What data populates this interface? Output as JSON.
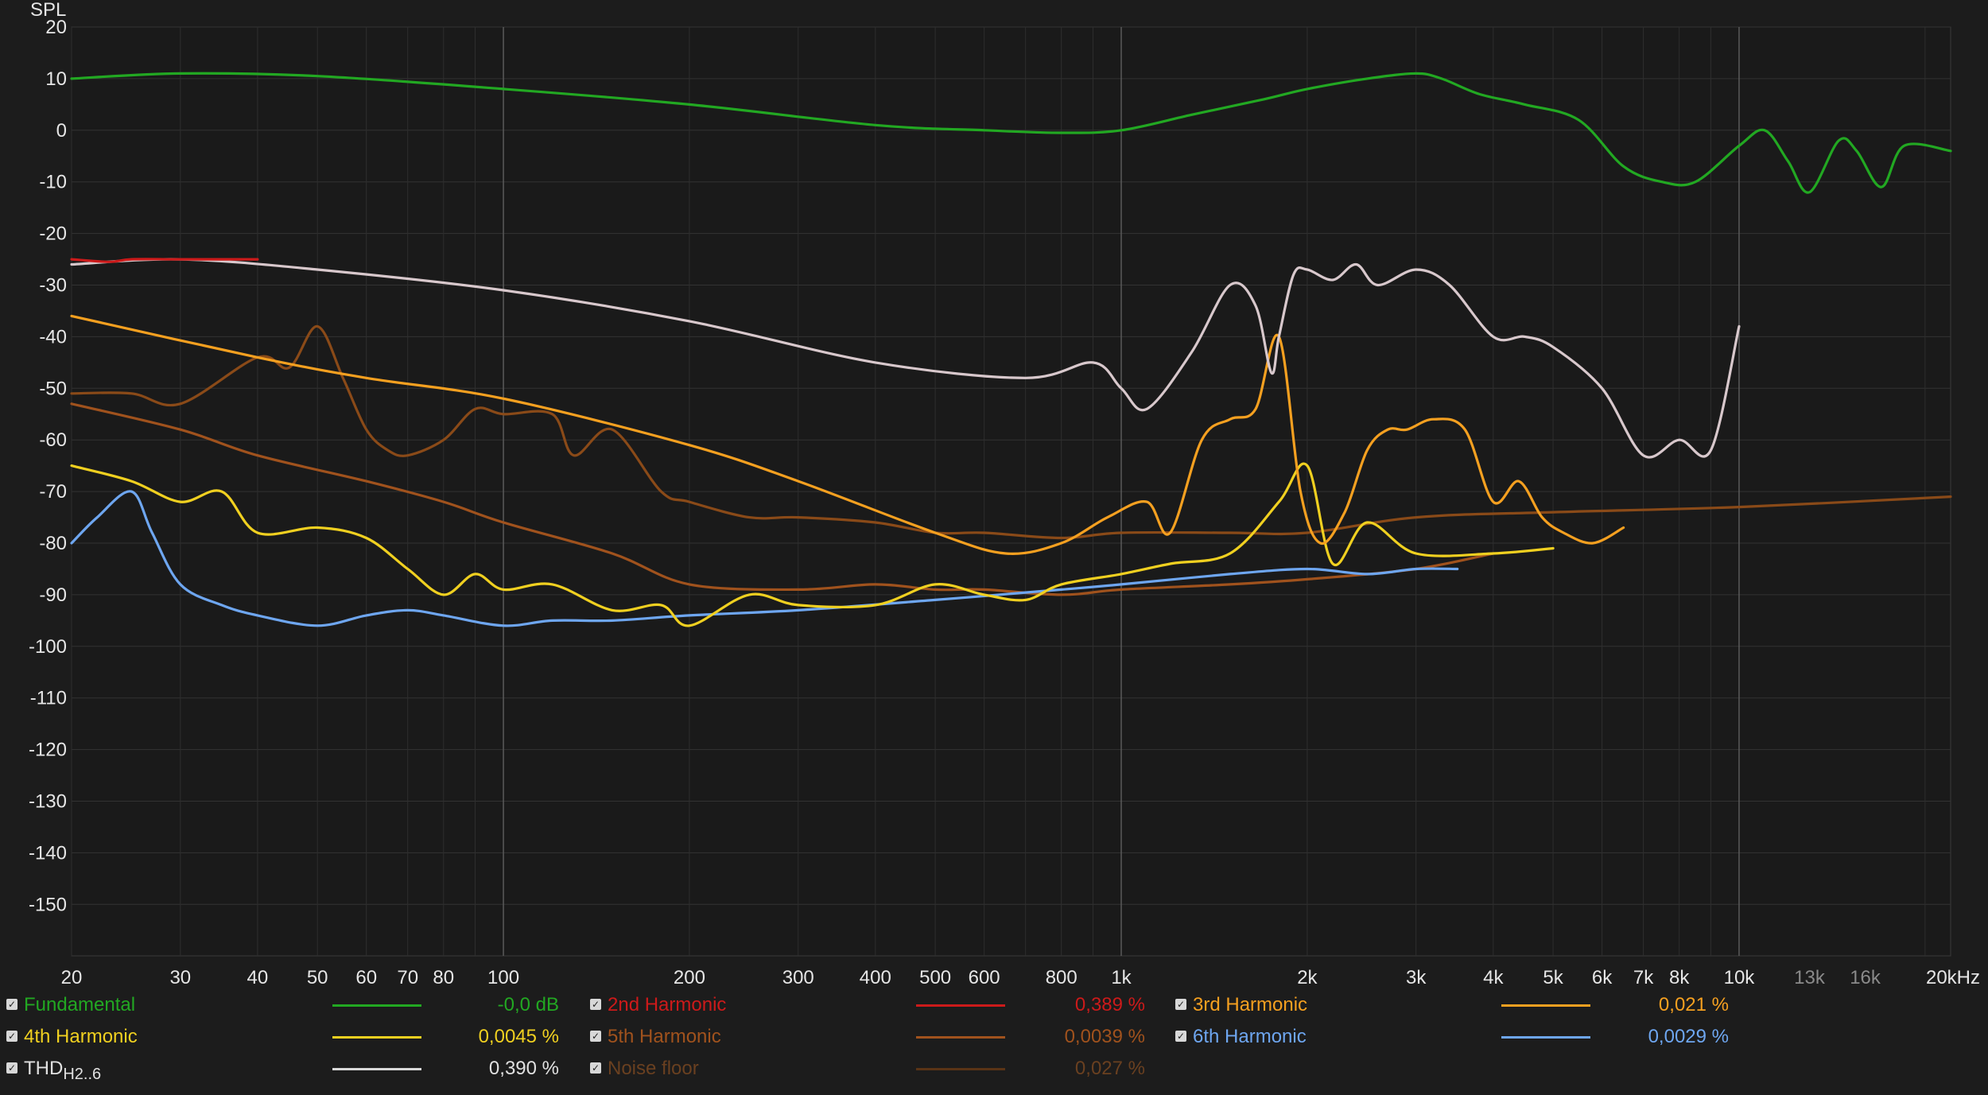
{
  "chart_data": {
    "type": "line",
    "ylabel": "SPL",
    "xscale": "log",
    "xlim": [
      20,
      22000
    ],
    "ylim": [
      -160,
      20
    ],
    "grid": true,
    "y_ticks": [
      "20",
      "10",
      "0",
      "-10",
      "-20",
      "-30",
      "-40",
      "-50",
      "-60",
      "-70",
      "-80",
      "-90",
      "-100",
      "-110",
      "-120",
      "-130",
      "-140",
      "-150"
    ],
    "x_ticks": [
      {
        "v": 20,
        "label": "20"
      },
      {
        "v": 30,
        "label": "30"
      },
      {
        "v": 40,
        "label": "40"
      },
      {
        "v": 50,
        "label": "50"
      },
      {
        "v": 60,
        "label": "60"
      },
      {
        "v": 70,
        "label": "70"
      },
      {
        "v": 80,
        "label": "80"
      },
      {
        "v": 100,
        "label": "100"
      },
      {
        "v": 200,
        "label": "200"
      },
      {
        "v": 300,
        "label": "300"
      },
      {
        "v": 400,
        "label": "400"
      },
      {
        "v": 500,
        "label": "500"
      },
      {
        "v": 600,
        "label": "600"
      },
      {
        "v": 800,
        "label": "800"
      },
      {
        "v": 1000,
        "label": "1k"
      },
      {
        "v": 2000,
        "label": "2k"
      },
      {
        "v": 3000,
        "label": "3k"
      },
      {
        "v": 4000,
        "label": "4k"
      },
      {
        "v": 5000,
        "label": "5k"
      },
      {
        "v": 6000,
        "label": "6k"
      },
      {
        "v": 7000,
        "label": "7k"
      },
      {
        "v": 8000,
        "label": "8k"
      },
      {
        "v": 10000,
        "label": "10k"
      },
      {
        "v": 13000,
        "label": "13k",
        "dim": true
      },
      {
        "v": 16000,
        "label": "16k",
        "dim": true
      },
      {
        "v": 22000,
        "label": "20kHz"
      }
    ],
    "series": [
      {
        "name": "Fundamental",
        "color": "#22a822",
        "x": [
          20,
          30,
          50,
          100,
          200,
          400,
          600,
          800,
          1000,
          1300,
          1700,
          2000,
          2500,
          3000,
          3300,
          3800,
          4500,
          5500,
          6500,
          7500,
          8500,
          10000,
          11000,
          12000,
          13000,
          14500,
          15500,
          17000,
          18500,
          22000
        ],
        "y": [
          10,
          11,
          10.5,
          8,
          5,
          1,
          0,
          -0.5,
          0,
          3,
          6,
          8,
          10,
          11,
          10,
          7,
          5,
          2,
          -7,
          -10,
          -10,
          -3,
          0,
          -6,
          -12,
          -2,
          -4,
          -11,
          -3,
          -4
        ]
      },
      {
        "name": "2nd Harmonic",
        "color": "#cc1a1a",
        "x": [
          20,
          23,
          25,
          30,
          40
        ],
        "y": [
          -25,
          -25.5,
          -25,
          -25,
          -25
        ]
      },
      {
        "name": "3rd Harmonic",
        "color": "#f5a020",
        "x": [
          20,
          40,
          60,
          100,
          200,
          300,
          500,
          650,
          800,
          950,
          1100,
          1200,
          1350,
          1500,
          1650,
          1800,
          1950,
          2100,
          2300,
          2500,
          2700,
          2900,
          3200,
          3600,
          4000,
          4400,
          4800,
          5200,
          5800,
          6500
        ],
        "y": [
          -36,
          -44,
          -48,
          -52,
          -61,
          -68,
          -78,
          -82,
          -80,
          -75,
          -72,
          -78,
          -60,
          -56,
          -54,
          -40,
          -70,
          -80,
          -74,
          -62,
          -58,
          -58,
          -56,
          -58,
          -72,
          -68,
          -75,
          -78,
          -80,
          -77
        ]
      },
      {
        "name": "4th Harmonic",
        "color": "#f0d020",
        "x": [
          20,
          25,
          30,
          35,
          40,
          50,
          60,
          70,
          80,
          90,
          100,
          120,
          150,
          180,
          200,
          250,
          300,
          400,
          500,
          600,
          700,
          800,
          1000,
          1200,
          1500,
          1800,
          2000,
          2200,
          2500,
          3000,
          4000,
          5000
        ],
        "y": [
          -65,
          -68,
          -72,
          -70,
          -78,
          -77,
          -79,
          -85,
          -90,
          -86,
          -89,
          -88,
          -93,
          -92,
          -96,
          -90,
          -92,
          -92,
          -88,
          -90,
          -91,
          -88,
          -86,
          -84,
          -82,
          -72,
          -65,
          -84,
          -76,
          -82,
          -82,
          -81
        ]
      },
      {
        "name": "5th Harmonic",
        "color": "#a0521d",
        "x": [
          20,
          30,
          40,
          60,
          80,
          100,
          150,
          200,
          300,
          400,
          500,
          600,
          800,
          1000,
          1500,
          2000,
          3000,
          4000
        ],
        "y": [
          -53,
          -58,
          -63,
          -68,
          -72,
          -76,
          -82,
          -88,
          -89,
          -88,
          -89,
          -89,
          -90,
          -89,
          -88,
          -87,
          -85,
          -82
        ]
      },
      {
        "name": "6th Harmonic",
        "color": "#6ea6f0",
        "x": [
          20,
          22,
          25,
          27,
          30,
          35,
          40,
          50,
          60,
          70,
          80,
          100,
          120,
          150,
          200,
          300,
          500,
          800,
          1000,
          1500,
          2000,
          2500,
          3000,
          3500
        ],
        "y": [
          -80,
          -75,
          -70,
          -78,
          -88,
          -92,
          -94,
          -96,
          -94,
          -93,
          -94,
          -96,
          -95,
          -95,
          -94,
          -93,
          -91,
          -89,
          -88,
          -86,
          -85,
          -86,
          -85,
          -85
        ]
      },
      {
        "name": "THD",
        "color": "#d8c8cc",
        "x": [
          20,
          30,
          50,
          100,
          200,
          400,
          700,
          900,
          1000,
          1100,
          1300,
          1500,
          1650,
          1750,
          1800,
          1900,
          2000,
          2200,
          2400,
          2600,
          3000,
          3400,
          4000,
          4500,
          5000,
          6000,
          7000,
          8000,
          9000,
          10000
        ],
        "y": [
          -26,
          -25,
          -27,
          -31,
          -37,
          -45,
          -48,
          -45,
          -50,
          -54,
          -43,
          -30,
          -34,
          -47,
          -40,
          -28,
          -27,
          -29,
          -26,
          -30,
          -27,
          -30,
          -40,
          -40,
          -42,
          -50,
          -63,
          -60,
          -62,
          -38
        ]
      },
      {
        "name": "Noise floor",
        "color": "#8a4a18",
        "x": [
          20,
          25,
          30,
          40,
          45,
          50,
          55,
          60,
          65,
          70,
          80,
          90,
          100,
          120,
          130,
          150,
          180,
          200,
          250,
          300,
          400,
          500,
          600,
          800,
          1000,
          1500,
          2000,
          3000,
          5000,
          10000,
          22000
        ],
        "y": [
          -51,
          -51,
          -53,
          -44,
          -46,
          -38,
          -48,
          -58,
          -62,
          -63,
          -60,
          -54,
          -55,
          -55,
          -63,
          -58,
          -70,
          -72,
          -75,
          -75,
          -76,
          -78,
          -78,
          -79,
          -78,
          -78,
          -78,
          -75,
          -74,
          -73,
          -71
        ]
      }
    ]
  },
  "legend": [
    {
      "label": "Fundamental",
      "value": "-0,0 dB",
      "color": "#22a822",
      "checked": true
    },
    {
      "label": "2nd Harmonic",
      "value": "0,389 %",
      "color": "#cc1a1a",
      "checked": true
    },
    {
      "label": "3rd Harmonic",
      "value": "0,021 %",
      "color": "#f5a020",
      "checked": true
    },
    {
      "label": "4th Harmonic",
      "value": "0,0045 %",
      "color": "#f0d020",
      "checked": true
    },
    {
      "label": "5th Harmonic",
      "value": "0,0039 %",
      "color": "#a0521d",
      "checked": true
    },
    {
      "label": "6th Harmonic",
      "value": "0,0029 %",
      "color": "#6ea6f0",
      "checked": true
    },
    {
      "label": "THD",
      "sub": "H2..6",
      "value": "0,390 %",
      "color": "#d8d8d8",
      "text_color": "#e0e0e0",
      "checked": true
    },
    {
      "label": "Noise floor",
      "value": "0,027 %",
      "color": "#5a3416",
      "text_color": "#6a4020",
      "checked": true
    }
  ],
  "check_glyph": "✓"
}
